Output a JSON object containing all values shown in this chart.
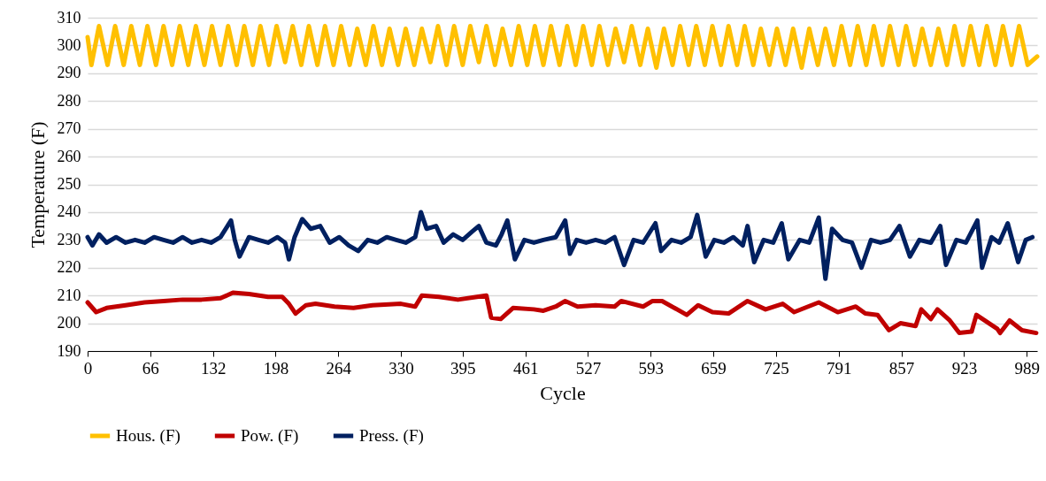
{
  "chart_data": {
    "type": "line",
    "xlabel": "Cycle",
    "ylabel": "Temperature (F)",
    "xlim": [
      0,
      1000
    ],
    "xticks": [
      0,
      66,
      132,
      198,
      264,
      330,
      395,
      461,
      527,
      593,
      659,
      725,
      791,
      857,
      923,
      989
    ],
    "ylim": [
      190,
      310
    ],
    "yticks": [
      190,
      200,
      210,
      220,
      230,
      240,
      250,
      260,
      270,
      280,
      290,
      300,
      310
    ],
    "grid": "y",
    "legend": "bottom",
    "series": [
      {
        "name": "Hous. (F)",
        "color": "#ffc000",
        "x": [
          0,
          4,
          12,
          21,
          29,
          38,
          46,
          55,
          63,
          72,
          80,
          89,
          97,
          106,
          114,
          123,
          131,
          140,
          148,
          157,
          165,
          174,
          182,
          191,
          199,
          208,
          216,
          225,
          233,
          242,
          250,
          259,
          267,
          276,
          284,
          293,
          301,
          310,
          318,
          327,
          335,
          344,
          352,
          361,
          369,
          378,
          386,
          395,
          403,
          412,
          420,
          429,
          437,
          446,
          454,
          463,
          471,
          480,
          488,
          497,
          505,
          514,
          522,
          531,
          539,
          548,
          556,
          565,
          573,
          582,
          590,
          599,
          607,
          616,
          624,
          633,
          641,
          650,
          658,
          667,
          675,
          684,
          692,
          701,
          709,
          718,
          726,
          735,
          743,
          752,
          760,
          769,
          777,
          786,
          794,
          803,
          811,
          820,
          828,
          837,
          845,
          854,
          862,
          871,
          879,
          888,
          896,
          905,
          913,
          922,
          930,
          939,
          947,
          956,
          964,
          973,
          981,
          990,
          1000
        ],
        "values": [
          303,
          293,
          307,
          293,
          307,
          293,
          307,
          293,
          307,
          293,
          307,
          293,
          307,
          293,
          307,
          293,
          307,
          293,
          307,
          293,
          307,
          293,
          307,
          293,
          307,
          294,
          307,
          293,
          307,
          293,
          307,
          293,
          307,
          293,
          306,
          293,
          307,
          293,
          306,
          293,
          306,
          293,
          306,
          294,
          307,
          293,
          307,
          293,
          307,
          294,
          307,
          293,
          306,
          293,
          307,
          293,
          307,
          293,
          307,
          293,
          307,
          293,
          307,
          293,
          307,
          293,
          306,
          294,
          307,
          293,
          306,
          292,
          306,
          293,
          307,
          293,
          307,
          293,
          307,
          293,
          307,
          293,
          307,
          293,
          306,
          293,
          306,
          293,
          306,
          292,
          306,
          293,
          306,
          293,
          307,
          293,
          307,
          293,
          307,
          293,
          307,
          293,
          307,
          293,
          306,
          293,
          306,
          293,
          307,
          293,
          307,
          293,
          307,
          293,
          307,
          293,
          307,
          293,
          296
        ]
      },
      {
        "name": "Pow. (F)",
        "color": "#c00000",
        "x": [
          0,
          9,
          20,
          40,
          60,
          80,
          100,
          120,
          140,
          153,
          170,
          190,
          205,
          212,
          219,
          230,
          240,
          260,
          280,
          300,
          330,
          345,
          352,
          370,
          390,
          410,
          420,
          425,
          435,
          448,
          470,
          480,
          493,
          503,
          516,
          535,
          555,
          562,
          585,
          595,
          605,
          631,
          643,
          658,
          675,
          695,
          714,
          732,
          744,
          770,
          790,
          809,
          819,
          832,
          844,
          856,
          872,
          878,
          888,
          895,
          908,
          918,
          931,
          936,
          958,
          961,
          971,
          984,
          999
        ],
        "values": [
          207.5,
          204,
          205.5,
          206.5,
          207.5,
          208,
          208.5,
          208.5,
          209,
          211,
          210.5,
          209.5,
          209.5,
          207,
          203.5,
          206.5,
          207,
          206,
          205.5,
          206.5,
          207,
          206,
          210,
          209.5,
          208.5,
          209.5,
          210,
          202,
          201.5,
          205.5,
          205,
          204.5,
          206,
          208,
          206,
          206.5,
          206,
          208,
          206,
          208,
          208,
          203,
          206.5,
          204,
          203.5,
          208,
          205,
          207,
          204,
          207.5,
          204,
          206,
          203.5,
          203,
          197.5,
          200,
          199,
          205,
          201.5,
          205,
          201,
          196.5,
          197,
          203,
          198,
          196.5,
          201,
          197.5,
          196.5
        ]
      },
      {
        "name": "Press. (F)",
        "color": "#002060",
        "x": [
          0,
          5,
          12,
          20,
          30,
          40,
          50,
          60,
          70,
          80,
          90,
          100,
          110,
          120,
          130,
          140,
          151,
          155,
          160,
          170,
          180,
          190,
          200,
          208,
          212,
          218,
          226,
          235,
          245,
          255,
          265,
          275,
          285,
          295,
          305,
          315,
          325,
          335,
          345,
          351,
          357,
          367,
          375,
          385,
          395,
          405,
          412,
          420,
          430,
          436,
          442,
          450,
          460,
          470,
          480,
          493,
          503,
          508,
          515,
          525,
          535,
          545,
          555,
          565,
          575,
          585,
          598,
          604,
          615,
          625,
          635,
          642,
          651,
          660,
          670,
          680,
          690,
          695,
          702,
          712,
          722,
          731,
          738,
          750,
          760,
          770,
          777,
          784,
          795,
          805,
          815,
          825,
          835,
          845,
          855,
          866,
          876,
          888,
          898,
          904,
          915,
          925,
          937,
          942,
          952,
          960,
          969,
          980,
          988,
          995
        ],
        "values": [
          231,
          228,
          232,
          229,
          231,
          229,
          230,
          229,
          231,
          230,
          229,
          231,
          229,
          230,
          229,
          231,
          237,
          230,
          224,
          231,
          230,
          229,
          231,
          229,
          223,
          231,
          237.5,
          234,
          235,
          229,
          231,
          228,
          226,
          230,
          229,
          231,
          230,
          229,
          231,
          240,
          234,
          235,
          229,
          232,
          230,
          233,
          235,
          229,
          228,
          232,
          237,
          223,
          230,
          229,
          230,
          231,
          237,
          225,
          230,
          229,
          230,
          229,
          231,
          221,
          230,
          229,
          236,
          226,
          230,
          229,
          231,
          239,
          224,
          230,
          229,
          231,
          228,
          235,
          222,
          230,
          229,
          236,
          223,
          230,
          229,
          238,
          216,
          234,
          230,
          229,
          220,
          230,
          229,
          230,
          235,
          224,
          230,
          229,
          235,
          221,
          230,
          229,
          237,
          220,
          231,
          229,
          236,
          222,
          230,
          231
        ]
      }
    ]
  }
}
